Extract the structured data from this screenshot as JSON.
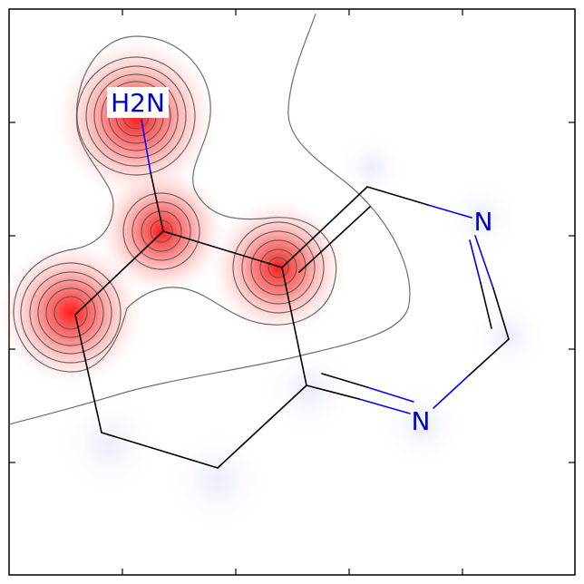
{
  "molecule": {
    "atom_labels": {
      "amine": "H2N",
      "n_upper": "N",
      "n_lower": "N"
    },
    "colors": {
      "bond": "#000000",
      "hetero_bond": "#0000ff",
      "label": "#0000cc",
      "contour": "#555555",
      "positive_density": "#ff0000",
      "negative_density": "#e8e8ff"
    }
  }
}
